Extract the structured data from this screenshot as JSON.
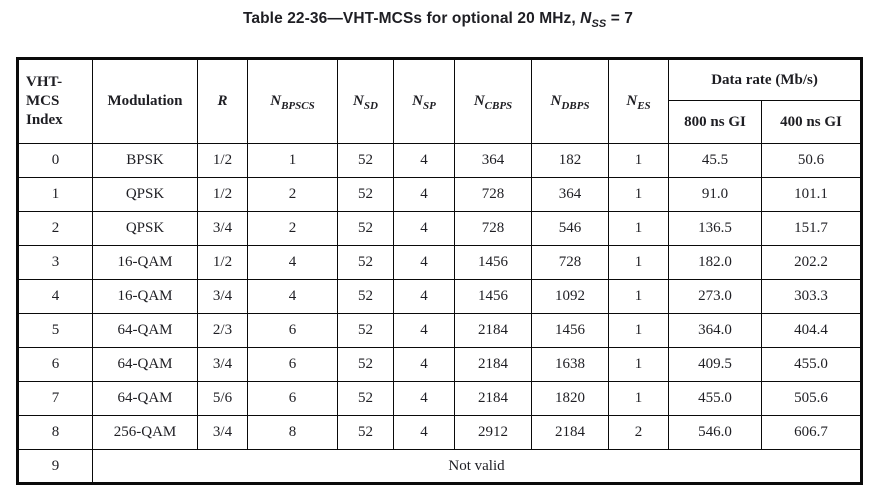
{
  "title": {
    "text": "Table 22-36—VHT-MCSs for optional 20 MHz, ",
    "symbol_base": "N",
    "symbol_sub": "SS",
    "suffix": " = 7"
  },
  "table": {
    "headers": {
      "index": "VHT-\nMCS\nIndex",
      "modulation": "Modulation",
      "r": "R",
      "n_cols": [
        {
          "base": "N",
          "sub": "BPSCS"
        },
        {
          "base": "N",
          "sub": "SD"
        },
        {
          "base": "N",
          "sub": "SP"
        },
        {
          "base": "N",
          "sub": "CBPS"
        },
        {
          "base": "N",
          "sub": "DBPS"
        },
        {
          "base": "N",
          "sub": "ES"
        }
      ],
      "data_rate_group": "Data rate (Mb/s)",
      "gi_800": "800 ns GI",
      "gi_400": "400 ns GI"
    },
    "rows": [
      {
        "index": "0",
        "cells": [
          "BPSK",
          "1/2",
          "1",
          "52",
          "4",
          "364",
          "182",
          "1",
          "45.5",
          "50.6"
        ]
      },
      {
        "index": "1",
        "cells": [
          "QPSK",
          "1/2",
          "2",
          "52",
          "4",
          "728",
          "364",
          "1",
          "91.0",
          "101.1"
        ]
      },
      {
        "index": "2",
        "cells": [
          "QPSK",
          "3/4",
          "2",
          "52",
          "4",
          "728",
          "546",
          "1",
          "136.5",
          "151.7"
        ]
      },
      {
        "index": "3",
        "cells": [
          "16-QAM",
          "1/2",
          "4",
          "52",
          "4",
          "1456",
          "728",
          "1",
          "182.0",
          "202.2"
        ]
      },
      {
        "index": "4",
        "cells": [
          "16-QAM",
          "3/4",
          "4",
          "52",
          "4",
          "1456",
          "1092",
          "1",
          "273.0",
          "303.3"
        ]
      },
      {
        "index": "5",
        "cells": [
          "64-QAM",
          "2/3",
          "6",
          "52",
          "4",
          "2184",
          "1456",
          "1",
          "364.0",
          "404.4"
        ]
      },
      {
        "index": "6",
        "cells": [
          "64-QAM",
          "3/4",
          "6",
          "52",
          "4",
          "2184",
          "1638",
          "1",
          "409.5",
          "455.0"
        ]
      },
      {
        "index": "7",
        "cells": [
          "64-QAM",
          "5/6",
          "6",
          "52",
          "4",
          "2184",
          "1820",
          "1",
          "455.0",
          "505.6"
        ]
      },
      {
        "index": "8",
        "cells": [
          "256-QAM",
          "3/4",
          "8",
          "52",
          "4",
          "2912",
          "2184",
          "2",
          "546.0",
          "606.7"
        ]
      },
      {
        "index": "9",
        "span_text": "Not valid"
      }
    ]
  },
  "colors": {
    "text": "#1e1e23",
    "border": "#0a0a0a",
    "background": "#ffffff"
  }
}
